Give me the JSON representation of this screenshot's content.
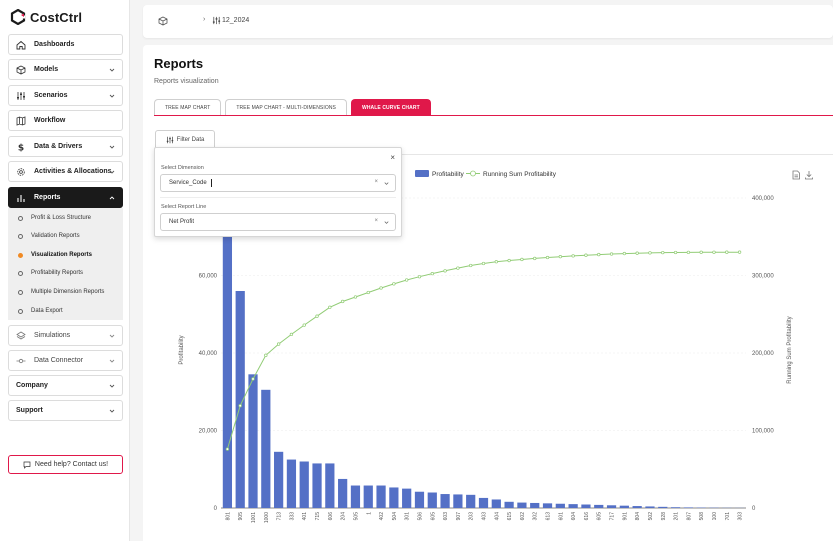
{
  "app": {
    "name": "CostCtrl",
    "brand_color": "#e0184a"
  },
  "sidebar": {
    "items": [
      {
        "label": "Dashboards",
        "icon": "home-icon",
        "chevron": false
      },
      {
        "label": "Models",
        "icon": "cube-icon",
        "chevron": true
      },
      {
        "label": "Scenarios",
        "icon": "sliders-icon",
        "chevron": true
      },
      {
        "label": "Workflow",
        "icon": "map-icon",
        "chevron": false
      },
      {
        "label": "Data & Drivers",
        "icon": "dollar-icon",
        "chevron": true
      },
      {
        "label": "Activities & Allocations",
        "icon": "gear-icon",
        "chevron": true
      },
      {
        "label": "Reports",
        "icon": "bar-chart-icon",
        "chevron": true,
        "active": true
      }
    ],
    "report_subitems": [
      {
        "label": "Profit & Loss Structure"
      },
      {
        "label": "Validation Reports"
      },
      {
        "label": "Visualization Reports",
        "active": true
      },
      {
        "label": "Profitability Reports"
      },
      {
        "label": "Multiple Dimension Reports"
      },
      {
        "label": "Data Export"
      }
    ],
    "lower_items": [
      {
        "label": "Simulations",
        "icon": "layers-icon"
      },
      {
        "label": "Data Connector",
        "icon": "connector-icon"
      },
      {
        "label": "Company"
      },
      {
        "label": "Support"
      }
    ],
    "help_label": "Need help? Contact us!"
  },
  "breadcrumb": {
    "sep": "›",
    "current": "12_2024"
  },
  "page": {
    "title": "Reports",
    "subtitle": "Reports visualization",
    "tabs": [
      {
        "label": "TREE MAP CHART"
      },
      {
        "label": "TREE MAP CHART - MULTI-DIMENSIONS"
      },
      {
        "label": "WHALE CURVE CHART",
        "active": true
      }
    ],
    "filter_label": "Filter Data"
  },
  "filter_popup": {
    "close": "×",
    "dimension_label": "Select Dimension",
    "dimension_value": "Service_Code",
    "report_line_label": "Select Report Line",
    "report_line_value": "Net Profit",
    "clear": "×"
  },
  "chart_data": {
    "type": "bar+line",
    "legend": [
      {
        "name": "Profitability",
        "color": "#5470c6"
      },
      {
        "name": "Running Sum Profitability",
        "color": "#91cc75"
      }
    ],
    "ylabel_left": "Profitability",
    "ylabel_right": "Running Sum Profitability",
    "y_left_range": [
      0,
      80000
    ],
    "y_left_ticks": [
      "0",
      "20,000",
      "40,000",
      "60,000"
    ],
    "y_right_range": [
      0,
      400000
    ],
    "y_right_ticks": [
      "0",
      "100,000",
      "200,000",
      "300,000",
      "400,000"
    ],
    "categories": [
      "801",
      "905",
      "1001",
      "1000",
      "713",
      "333",
      "401",
      "715",
      "606",
      "204",
      "505",
      "1",
      "402",
      "504",
      "301",
      "506",
      "605",
      "603",
      "907",
      "203",
      "403",
      "404",
      "615",
      "602",
      "302",
      "613",
      "601",
      "604",
      "616",
      "605",
      "717",
      "901",
      "804",
      "502",
      "928",
      "201",
      "807",
      "508",
      "100",
      "701",
      "303"
    ],
    "values": [
      76000,
      56000,
      34500,
      30500,
      14500,
      12500,
      12000,
      11500,
      11500,
      7500,
      5800,
      5800,
      5800,
      5300,
      5000,
      4200,
      4000,
      3600,
      3500,
      3400,
      2600,
      2200,
      1600,
      1400,
      1300,
      1200,
      1100,
      1000,
      900,
      800,
      700,
      600,
      500,
      400,
      300,
      200,
      150,
      100,
      80,
      50,
      30
    ],
    "running_sum": [
      76000,
      132000,
      166500,
      197000,
      211500,
      224000,
      236000,
      247500,
      259000,
      266500,
      272300,
      278100,
      283900,
      289200,
      294200,
      298400,
      302400,
      306000,
      309500,
      312900,
      315500,
      317700,
      319300,
      320700,
      322000,
      323200,
      324300,
      325300,
      326200,
      327000,
      327700,
      328300,
      328800,
      329200,
      329500,
      329700,
      329850,
      329950,
      330030,
      330080,
      330110
    ]
  }
}
